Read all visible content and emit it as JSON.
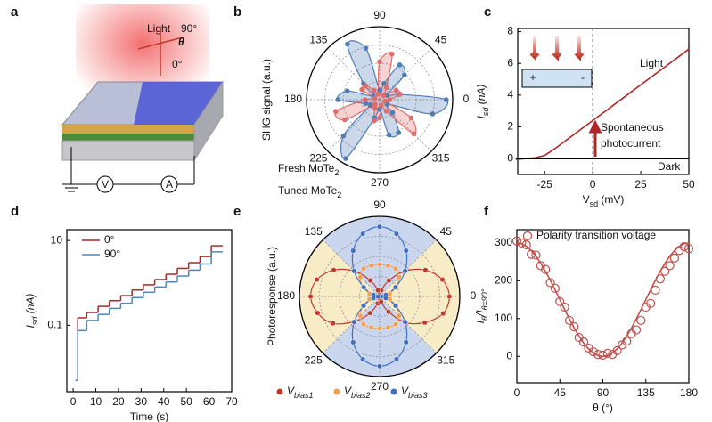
{
  "schematic": {
    "label": "a",
    "light": "Light",
    "angle_90": "90°",
    "theta": "θ",
    "angle_0": "0°",
    "voltmeter": "V",
    "ammeter": "A"
  },
  "chart_data": [
    {
      "type": "polar",
      "label": "b",
      "y_label": "SHG signal (a.u.)",
      "angle_ticks": [
        90,
        45,
        0,
        315,
        270,
        225,
        180,
        135
      ],
      "rlim": [
        0,
        1
      ],
      "fill_lobes": true,
      "theta": [
        0,
        15,
        30,
        45,
        60,
        75,
        90,
        105,
        120,
        135,
        150,
        165,
        180,
        195,
        210,
        225,
        240,
        255,
        270,
        285,
        300,
        315,
        330,
        345
      ],
      "series": [
        {
          "name": "Fresh MoTe2",
          "color": "#4f7db5",
          "values": [
            0.91,
            0.28,
            0.12,
            0.48,
            0.55,
            0.23,
            0.13,
            0.73,
            0.88,
            0.31,
            0.1,
            0.46,
            0.57,
            0.2,
            0.15,
            0.7,
            0.93,
            0.26,
            0.13,
            0.5,
            0.52,
            0.25,
            0.12,
            0.75
          ]
        },
        {
          "name": "Tuned MoTe2",
          "color": "#e06b6b",
          "values": [
            0.14,
            0.29,
            0.26,
            0.08,
            0.19,
            0.65,
            0.52,
            0.08,
            0.15,
            0.27,
            0.28,
            0.07,
            0.2,
            0.62,
            0.55,
            0.09,
            0.13,
            0.3,
            0.25,
            0.08,
            0.18,
            0.66,
            0.5,
            0.08
          ]
        }
      ]
    },
    {
      "type": "line",
      "label": "c",
      "x_label": "Vsd (mV)",
      "y_label": "Isd (nA)",
      "xlim": [
        -39,
        50
      ],
      "ylim": [
        -1,
        8.2
      ],
      "xticks": [
        -25,
        0,
        25,
        50
      ],
      "yticks": [
        0,
        2,
        4,
        6,
        8
      ],
      "annotation": [
        "Spontaneous",
        "photocurrent"
      ],
      "inset_labels": [
        "+",
        "-"
      ],
      "x": [
        -40,
        -35,
        -30,
        -25,
        -20,
        -15,
        -10,
        -5,
        0,
        5,
        10,
        15,
        20,
        25,
        30,
        35,
        40,
        45,
        50
      ],
      "series": [
        {
          "name": "Light",
          "color": "#b02525",
          "values": [
            -0.05,
            0.0,
            0.05,
            0.2,
            0.6,
            1.05,
            1.5,
            1.95,
            2.4,
            2.85,
            3.3,
            3.75,
            4.2,
            4.65,
            5.1,
            5.55,
            6.0,
            6.45,
            6.9
          ]
        },
        {
          "name": "Dark",
          "color": "#000000",
          "values": [
            0,
            0,
            0,
            0,
            0,
            0,
            0,
            0,
            0,
            0,
            0,
            0,
            0,
            0,
            0,
            0,
            0,
            0,
            0
          ]
        }
      ]
    },
    {
      "type": "line",
      "label": "d",
      "x_label": "Time (s)",
      "y_label": "Isd (nA)",
      "step": true,
      "log_y": true,
      "xlim": [
        -2.8,
        70
      ],
      "ylim": [
        0.0027,
        18
      ],
      "xticks": [
        0,
        10,
        20,
        30,
        40,
        50,
        60,
        70
      ],
      "yticks": [
        0.1,
        10
      ],
      "x": [
        1,
        2,
        6,
        11,
        16,
        21,
        26,
        31,
        36,
        41,
        46,
        51,
        56,
        61,
        66
      ],
      "series": [
        {
          "name": "0°",
          "color": "#a52a2a",
          "values": [
            0.005,
            0.15,
            0.2,
            0.28,
            0.38,
            0.5,
            0.68,
            0.9,
            1.2,
            1.6,
            2.2,
            3.0,
            4.2,
            7.5,
            7.5
          ]
        },
        {
          "name": "90°",
          "color": "#4f86b8",
          "values": [
            0.005,
            0.075,
            0.13,
            0.18,
            0.25,
            0.33,
            0.45,
            0.6,
            0.8,
            1.05,
            1.45,
            2.0,
            2.8,
            5.4,
            5.4
          ]
        }
      ]
    },
    {
      "type": "polar",
      "label": "e",
      "y_label": "Photoresponse (a.u.)",
      "angle_ticks": [
        90,
        45,
        0,
        315,
        270,
        225,
        180,
        135
      ],
      "rlim": [
        0,
        1
      ],
      "fill_lobes": false,
      "sector_colors": [
        "#c9d6ee",
        "#f8ecc6"
      ],
      "theta": [
        0,
        15,
        30,
        45,
        60,
        75,
        90,
        105,
        120,
        135,
        150,
        165,
        180,
        195,
        210,
        225,
        240,
        255,
        270,
        285,
        300,
        315,
        330,
        345
      ],
      "series": [
        {
          "name": "Vbias1",
          "color": "#c0392b",
          "values": [
            0.87,
            0.81,
            0.66,
            0.45,
            0.23,
            0.08,
            0.02,
            0.08,
            0.23,
            0.45,
            0.66,
            0.81,
            0.86,
            0.8,
            0.67,
            0.44,
            0.24,
            0.09,
            0.02,
            0.07,
            0.22,
            0.46,
            0.65,
            0.82
          ]
        },
        {
          "name": "Vbias2",
          "color": "#f0a050",
          "values": [
            0.08,
            0.13,
            0.24,
            0.34,
            0.4,
            0.4,
            0.4,
            0.4,
            0.4,
            0.34,
            0.24,
            0.13,
            0.08,
            0.13,
            0.24,
            0.34,
            0.4,
            0.4,
            0.4,
            0.4,
            0.4,
            0.34,
            0.24,
            0.13
          ]
        },
        {
          "name": "Vbias3",
          "color": "#3f6fc0",
          "values": [
            0.02,
            0.08,
            0.23,
            0.45,
            0.66,
            0.81,
            0.87,
            0.81,
            0.66,
            0.45,
            0.23,
            0.08,
            0.02,
            0.08,
            0.23,
            0.45,
            0.66,
            0.81,
            0.87,
            0.81,
            0.66,
            0.45,
            0.23,
            0.08
          ]
        }
      ]
    },
    {
      "type": "scatter",
      "label": "f",
      "x_label": "θ (°)",
      "y_label": "Iθ/Iθ=90°",
      "xlim": [
        0,
        180
      ],
      "ylim": [
        -70,
        335
      ],
      "xticks": [
        0,
        45,
        90,
        135,
        180
      ],
      "yticks": [
        0,
        100,
        200,
        300
      ],
      "x": [
        0,
        5,
        10,
        15,
        20,
        25,
        30,
        35,
        40,
        45,
        50,
        55,
        60,
        65,
        70,
        75,
        80,
        85,
        90,
        95,
        100,
        105,
        110,
        115,
        120,
        125,
        130,
        135,
        140,
        145,
        150,
        155,
        160,
        165,
        170,
        175,
        180
      ],
      "series": [
        {
          "name": "Polarity transition voltage",
          "color": "#c0504d",
          "style": "markers",
          "values": [
            305,
            300,
            295,
            270,
            268,
            240,
            230,
            195,
            180,
            145,
            130,
            95,
            78,
            50,
            38,
            22,
            12,
            5,
            3,
            8,
            5,
            15,
            30,
            40,
            60,
            70,
            95,
            130,
            140,
            175,
            205,
            225,
            240,
            260,
            280,
            290,
            285
          ]
        },
        {
          "color": "#c0504d",
          "style": "line",
          "values": [
            300,
            298,
            291,
            280,
            265,
            246,
            225,
            201,
            176,
            150,
            124,
            99,
            75,
            54,
            35,
            20,
            9,
            2,
            0,
            2,
            9,
            20,
            35,
            54,
            75,
            99,
            124,
            150,
            176,
            201,
            225,
            246,
            265,
            280,
            291,
            298,
            300
          ]
        }
      ]
    }
  ]
}
